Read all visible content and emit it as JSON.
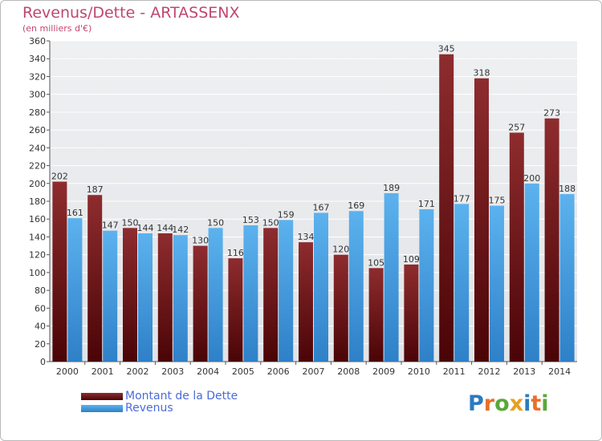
{
  "header": {
    "title": "Revenus/Dette - ARTASSENX",
    "subtitle": "(en milliers d'€)"
  },
  "legend": {
    "items": [
      {
        "label": "Montant de la Dette",
        "color": "#7a1c1e"
      },
      {
        "label": "Revenus",
        "color": "#4aa3e6"
      }
    ]
  },
  "logo": {
    "text": "Proxiti",
    "colors": [
      "#2b7bbf",
      "#e8702a",
      "#5aa83a",
      "#e8a020",
      "#2b7bbf",
      "#e8702a",
      "#5aa83a"
    ]
  },
  "chart_data": {
    "type": "bar",
    "title": "Revenus/Dette - ARTASSENX",
    "subtitle": "(en milliers d'€)",
    "categories": [
      "2000",
      "2001",
      "2002",
      "2003",
      "2004",
      "2005",
      "2006",
      "2007",
      "2008",
      "2009",
      "2010",
      "2011",
      "2012",
      "2013",
      "2014"
    ],
    "series": [
      {
        "name": "Montant de la Dette",
        "color": "#7a1c1e",
        "values": [
          202,
          187,
          150,
          144,
          130,
          116,
          150,
          134,
          120,
          105,
          109,
          345,
          318,
          257,
          273
        ]
      },
      {
        "name": "Revenus",
        "color": "#4aa3e6",
        "values": [
          161,
          147,
          144,
          142,
          150,
          153,
          159,
          167,
          169,
          189,
          171,
          177,
          175,
          200,
          188
        ]
      }
    ],
    "ylim": [
      0,
      360
    ],
    "ytick_step": 20,
    "grid": true,
    "legend_position": "bottom-left"
  }
}
